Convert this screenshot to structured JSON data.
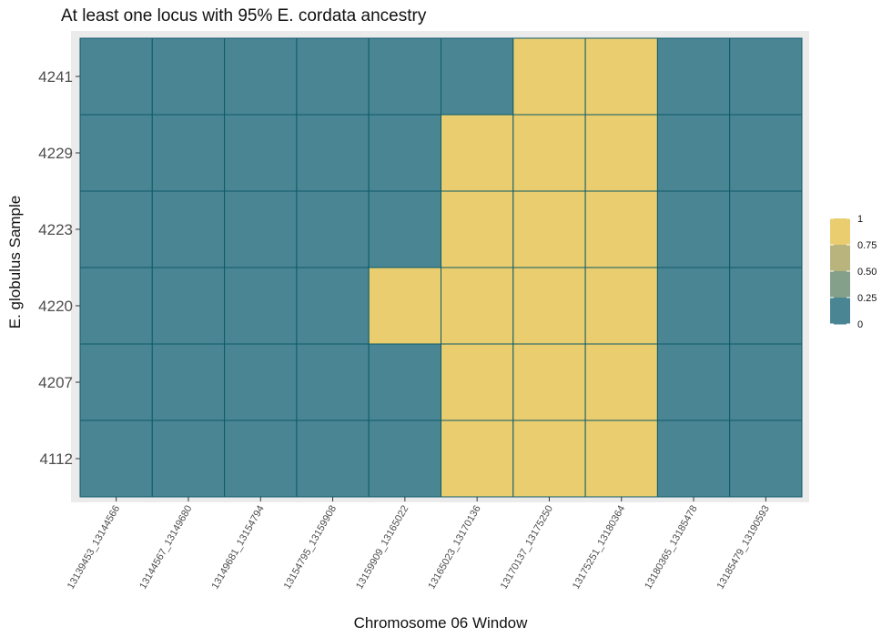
{
  "chart_data": {
    "type": "heatmap",
    "title": "At least one locus with 95% E. cordata ancestry",
    "xlabel": "Chromosome 06 Window",
    "ylabel": "E. globulus Sample",
    "x_categories": [
      "13139453_13144566",
      "13144567_13149680",
      "13149681_13154794",
      "13154795_13159908",
      "13159909_13165022",
      "13165023_13170136",
      "13170137_13175250",
      "13175251_13180364",
      "13180365_13185478",
      "13185479_13190593"
    ],
    "y_categories": [
      "4241",
      "4229",
      "4223",
      "4220",
      "4207",
      "4112"
    ],
    "values": [
      [
        0,
        0,
        0,
        0,
        0,
        0,
        1,
        1,
        0,
        0
      ],
      [
        0,
        0,
        0,
        0,
        0,
        1,
        1,
        1,
        0,
        0
      ],
      [
        0,
        0,
        0,
        0,
        0,
        1,
        1,
        1,
        0,
        0
      ],
      [
        0,
        0,
        0,
        0,
        1,
        1,
        1,
        1,
        0,
        0
      ],
      [
        0,
        0,
        0,
        0,
        0,
        1,
        1,
        1,
        0,
        0
      ],
      [
        0,
        0,
        0,
        0,
        0,
        1,
        1,
        1,
        0,
        0
      ]
    ],
    "color_scale": {
      "low": "#4a8594",
      "high": "#e9cd6f",
      "tile_border": "#0e5a68"
    },
    "legend": {
      "placement": "right",
      "labels": [
        "1",
        "0.75",
        "0.50",
        "0.25",
        "0"
      ],
      "colors": [
        "#e9cd6f",
        "#b9b47d",
        "#85a08a",
        "#4a8594"
      ]
    },
    "panel_background": "#ebebeb"
  }
}
